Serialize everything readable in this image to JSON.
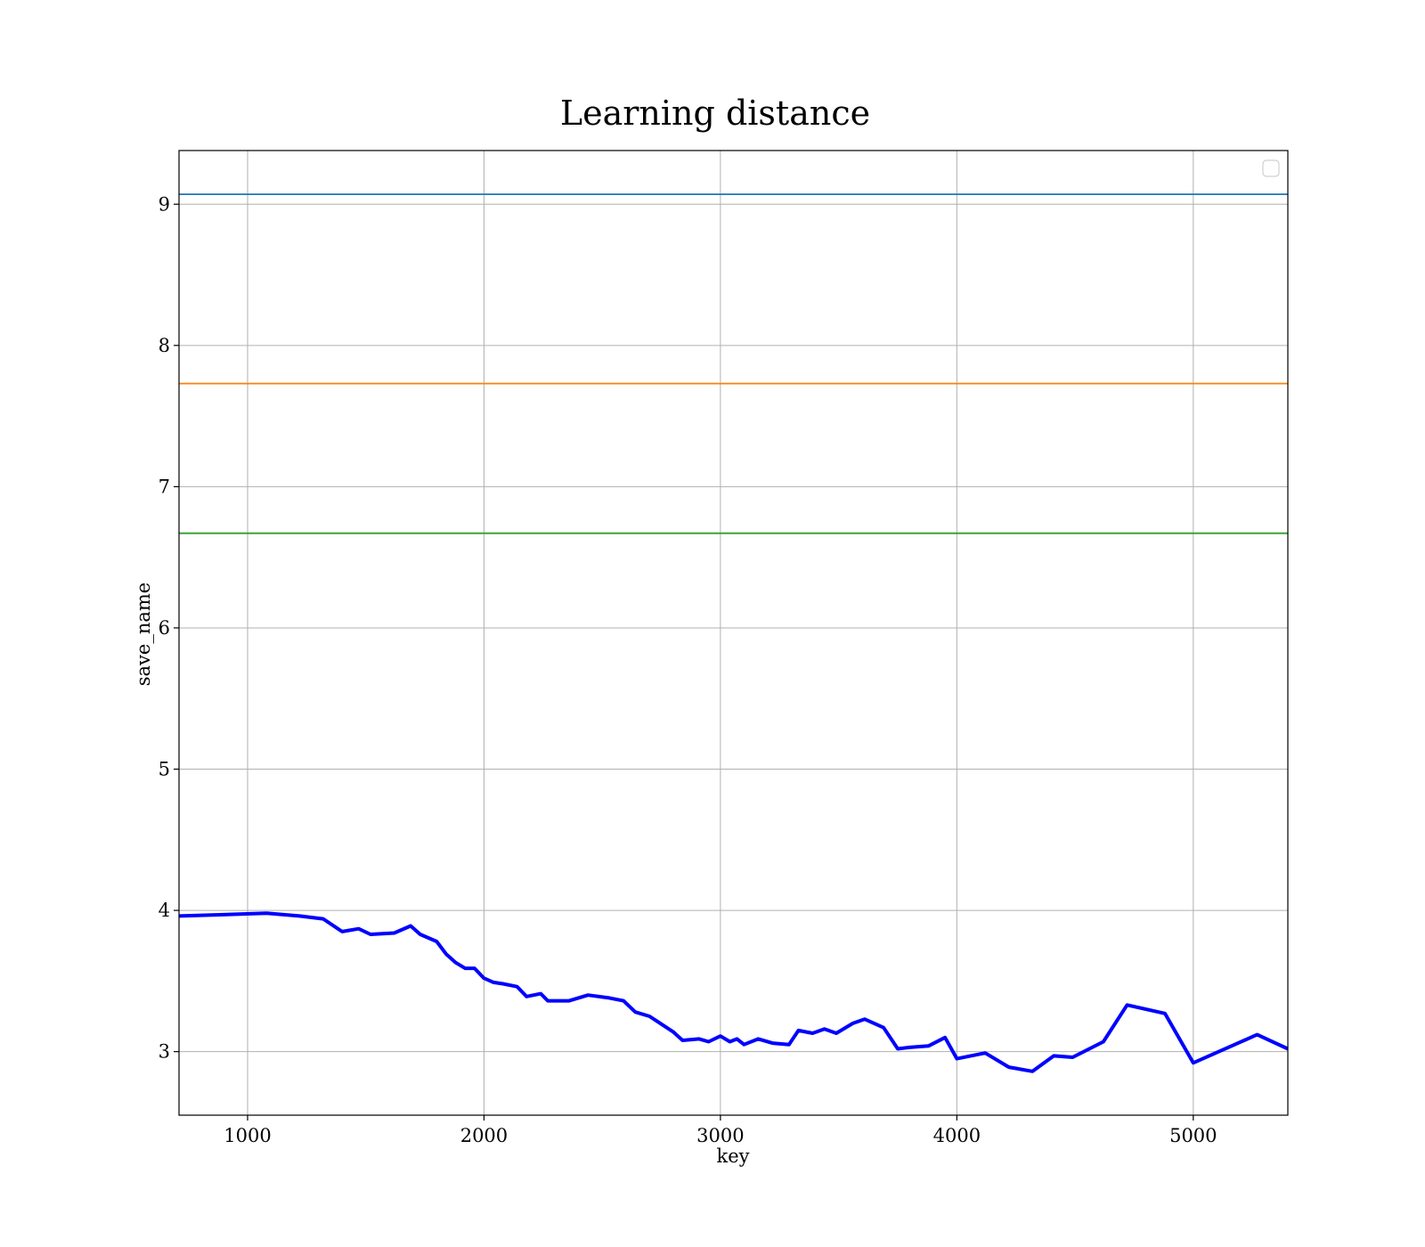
{
  "chart_data": {
    "type": "line",
    "title": "Learning distance",
    "xlabel": "key",
    "ylabel": "save_name",
    "xlim": [
      710,
      5400
    ],
    "ylim": [
      2.55,
      9.38
    ],
    "xticks": [
      1000,
      2000,
      3000,
      4000,
      5000
    ],
    "yticks": [
      3,
      4,
      5,
      6,
      7,
      8,
      9
    ],
    "grid": true,
    "legend": {
      "position": "top-right",
      "entries": []
    },
    "hlines": [
      {
        "y": 9.07,
        "color": "#1f77b4"
      },
      {
        "y": 7.73,
        "color": "#ff7f0e"
      },
      {
        "y": 6.67,
        "color": "#2ca02c"
      }
    ],
    "series": [
      {
        "color": "#0000ff",
        "x": [
          710,
          1080,
          1220,
          1320,
          1400,
          1470,
          1520,
          1620,
          1690,
          1730,
          1800,
          1840,
          1880,
          1920,
          1960,
          2000,
          2040,
          2080,
          2140,
          2180,
          2240,
          2270,
          2320,
          2360,
          2440,
          2530,
          2590,
          2640,
          2700,
          2800,
          2840,
          2910,
          2950,
          3000,
          3040,
          3070,
          3100,
          3160,
          3220,
          3290,
          3330,
          3390,
          3440,
          3490,
          3560,
          3610,
          3690,
          3750,
          3800,
          3880,
          3950,
          4000,
          4120,
          4220,
          4320,
          4410,
          4490,
          4620,
          4720,
          4880,
          5000,
          5270,
          5400
        ],
        "y": [
          3.96,
          3.98,
          3.96,
          3.94,
          3.85,
          3.87,
          3.83,
          3.84,
          3.89,
          3.83,
          3.78,
          3.69,
          3.63,
          3.59,
          3.59,
          3.52,
          3.49,
          3.48,
          3.46,
          3.39,
          3.41,
          3.36,
          3.36,
          3.36,
          3.4,
          3.38,
          3.36,
          3.28,
          3.25,
          3.14,
          3.08,
          3.09,
          3.07,
          3.11,
          3.07,
          3.09,
          3.05,
          3.09,
          3.06,
          3.05,
          3.15,
          3.13,
          3.16,
          3.13,
          3.2,
          3.23,
          3.17,
          3.02,
          3.03,
          3.04,
          3.1,
          2.95,
          2.99,
          2.89,
          2.86,
          2.97,
          2.96,
          3.07,
          3.33,
          3.27,
          2.92,
          3.12,
          3.02
        ]
      }
    ]
  }
}
